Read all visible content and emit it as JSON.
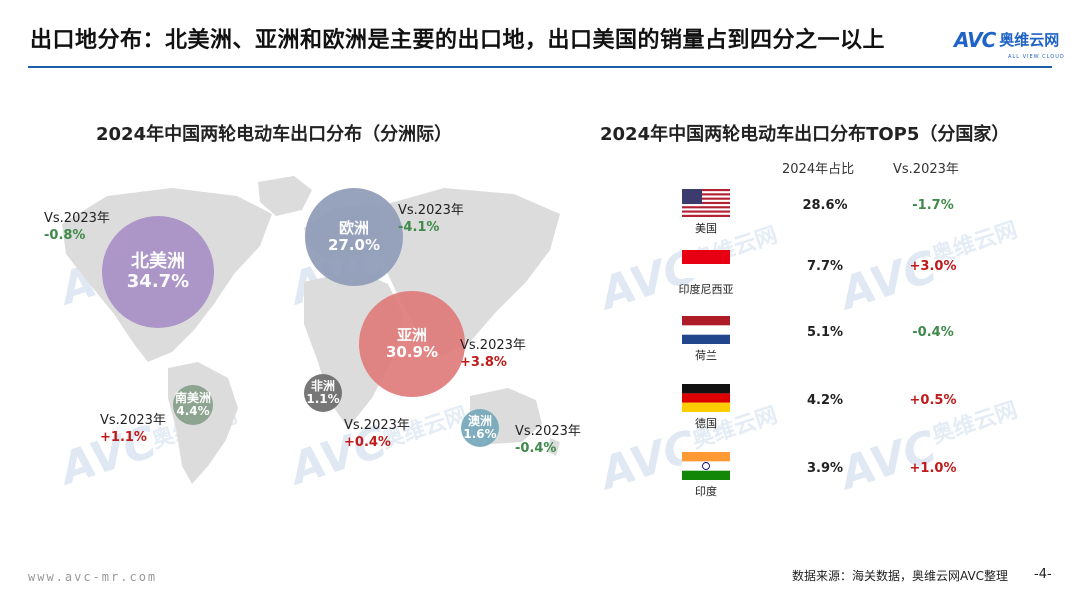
{
  "header": {
    "title": "出口地分布：北美洲、亚洲和欧洲是主要的出口地，出口美国的销量占到四分之一以上",
    "logo_text": "AVC",
    "logo_cn": "奥维云网",
    "logo_sub": "ALL VIEW CLOUD"
  },
  "footer": {
    "url": "www.avc-mr.com",
    "source": "数据来源：海关数据，奥维云网AVC整理",
    "page": "-4-"
  },
  "colors": {
    "north_america": "#a98fc6",
    "europe": "#8f9bb8",
    "asia": "#e07b7b",
    "south_america": "#87a08a",
    "africa": "#6c6c6c",
    "oceania": "#76a8bb",
    "positive": "#c01a1a",
    "negative": "#3f8a4a",
    "rule": "#1f5fa8"
  },
  "chart_data": [
    {
      "type": "bubble-map",
      "title": "2024年中国两轮电动车出口分布（分洲际）",
      "compare_label": "Vs.2023年",
      "regions": [
        {
          "name": "北美洲",
          "share": 34.7,
          "share_label": "34.7%",
          "delta": -0.8,
          "delta_label": "-0.8%"
        },
        {
          "name": "欧洲",
          "share": 27.0,
          "share_label": "27.0%",
          "delta": -4.1,
          "delta_label": "-4.1%"
        },
        {
          "name": "亚洲",
          "share": 30.9,
          "share_label": "30.9%",
          "delta": 3.8,
          "delta_label": "+3.8%"
        },
        {
          "name": "南美洲",
          "share": 4.4,
          "share_label": "4.4%",
          "delta": 1.1,
          "delta_label": "+1.1%"
        },
        {
          "name": "非洲",
          "share": 1.1,
          "share_label": "1.1%",
          "delta": 0.4,
          "delta_label": "+0.4%"
        },
        {
          "name": "澳洲",
          "share": 1.6,
          "share_label": "1.6%",
          "delta": -0.4,
          "delta_label": "-0.4%"
        }
      ]
    },
    {
      "type": "table",
      "title": "2024年中国两轮电动车出口分布TOP5（分国家）",
      "columns": [
        "2024年占比",
        "Vs.2023年"
      ],
      "rows": [
        {
          "country": "美国",
          "flag": "usa-flag",
          "share": 28.6,
          "share_label": "28.6%",
          "delta": -1.7,
          "delta_label": "-1.7%"
        },
        {
          "country": "印度尼西亚",
          "flag": "indonesia-flag",
          "share": 7.7,
          "share_label": "7.7%",
          "delta": 3.0,
          "delta_label": "+3.0%"
        },
        {
          "country": "荷兰",
          "flag": "netherlands-flag",
          "share": 5.1,
          "share_label": "5.1%",
          "delta": -0.4,
          "delta_label": "-0.4%"
        },
        {
          "country": "德国",
          "flag": "germany-flag",
          "share": 4.2,
          "share_label": "4.2%",
          "delta": 0.5,
          "delta_label": "+0.5%"
        },
        {
          "country": "印度",
          "flag": "india-flag",
          "share": 3.9,
          "share_label": "3.9%",
          "delta": 1.0,
          "delta_label": "+1.0%"
        }
      ]
    }
  ]
}
